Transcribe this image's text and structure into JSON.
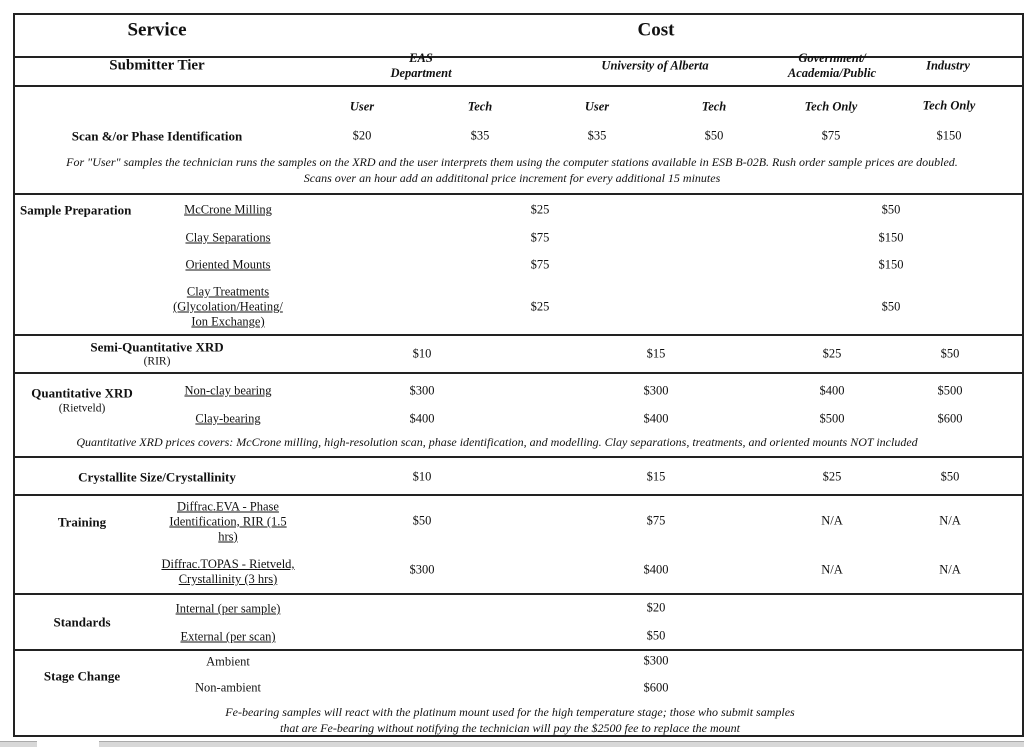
{
  "header": {
    "service": "Service",
    "cost": "Cost"
  },
  "tiers": {
    "label": "Submitter Tier",
    "eas": "EAS\nDepartment",
    "uofa": "University of Alberta",
    "gov": "Government/\nAcademia/Public",
    "industry": "Industry"
  },
  "scan": {
    "subheaders": [
      "User",
      "Tech",
      "User",
      "Tech",
      "Tech Only",
      "Tech Only"
    ],
    "label": "Scan &/or Phase Identification",
    "prices": [
      "$20",
      "$35",
      "$35",
      "$50",
      "$75",
      "$150"
    ],
    "note": "For \"User\" samples the technician runs the samples on the XRD and the user interprets them using the computer stations available in ESB B-02B. Rush order sample prices are doubled.\nScans over an hour add an addititonal price increment for every additional 15 minutes"
  },
  "sample_prep": {
    "label": "Sample Preparation",
    "items": [
      {
        "name": "McCrone Milling",
        "internal": "$25",
        "external": "$50"
      },
      {
        "name": "Clay Separations",
        "internal": "$75",
        "external": "$150"
      },
      {
        "name": "Oriented Mounts",
        "internal": "$75",
        "external": "$150"
      },
      {
        "name": "Clay Treatments\n(Glycolation/Heating/\nIon Exchange)",
        "internal": "$25",
        "external": "$50"
      }
    ]
  },
  "semi_quant": {
    "label": "Semi-Quantitative XRD",
    "sublabel": "(RIR)",
    "prices": [
      "$10",
      "$15",
      "$25",
      "$50"
    ]
  },
  "quant": {
    "label": "Quantitative XRD",
    "sublabel": "(Rietveld)",
    "items": [
      {
        "name": "Non-clay bearing",
        "prices": [
          "$300",
          "$300",
          "$400",
          "$500"
        ]
      },
      {
        "name": "Clay-bearing",
        "prices": [
          "$400",
          "$400",
          "$500",
          "$600"
        ]
      }
    ],
    "note": "Quantitative XRD prices covers: McCrone milling, high-resolution scan, phase identification, and modelling. Clay separations, treatments, and oriented mounts NOT included"
  },
  "crystallite": {
    "label": "Crystallite Size/Crystallinity",
    "prices": [
      "$10",
      "$15",
      "$25",
      "$50"
    ]
  },
  "training": {
    "label": "Training",
    "items": [
      {
        "name": "Diffrac.EVA - Phase\nIdentification, RIR (1.5\nhrs)",
        "prices": [
          "$50",
          "$75",
          "N/A",
          "N/A"
        ]
      },
      {
        "name": "Diffrac.TOPAS - Rietveld,\nCrystallinity (3 hrs)",
        "prices": [
          "$300",
          "$400",
          "N/A",
          "N/A"
        ]
      }
    ]
  },
  "standards": {
    "label": "Standards",
    "items": [
      {
        "name": "Internal (per sample)",
        "price": "$20"
      },
      {
        "name": "External (per scan)",
        "price": "$50"
      }
    ]
  },
  "stage": {
    "label": "Stage Change",
    "items": [
      {
        "name": "Ambient",
        "price": "$300"
      },
      {
        "name": "Non-ambient",
        "price": "$600"
      }
    ],
    "note": "Fe-bearing samples will react with the platinum mount used for the high temperature stage; those who submit samples\nthat are Fe-bearing without notifying the technician will pay the $2500 fee to replace the mount"
  }
}
